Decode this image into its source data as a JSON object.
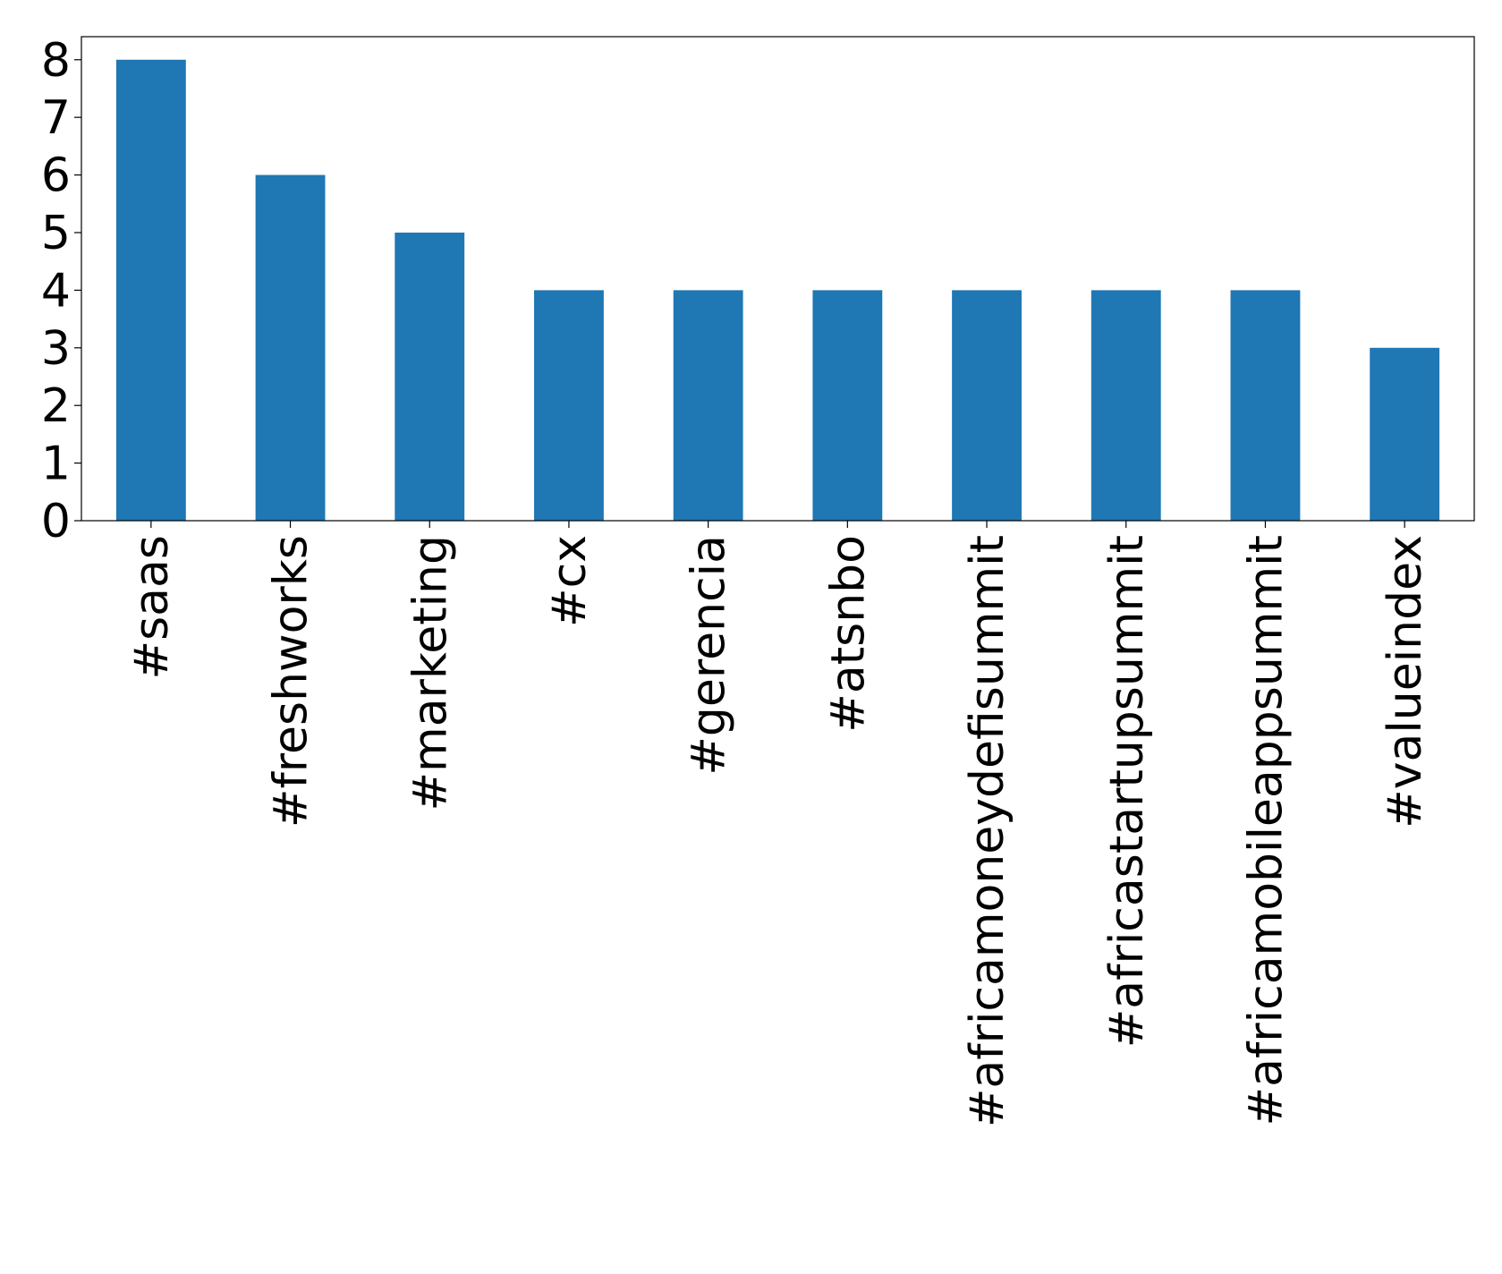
{
  "chart_data": {
    "type": "bar",
    "categories": [
      "#saas",
      "#freshworks",
      "#marketing",
      "#cx",
      "#gerencia",
      "#atsnbo",
      "#africamoneydefisummit",
      "#africastartupsummit",
      "#africamobileappsummit",
      "#valueindex"
    ],
    "values": [
      8,
      6,
      5,
      4,
      4,
      4,
      4,
      4,
      4,
      3
    ],
    "color": "#1f77b4",
    "ylim": [
      0,
      8.4
    ],
    "yticks": [
      0,
      1,
      2,
      3,
      4,
      5,
      6,
      7,
      8
    ],
    "grid": false
  }
}
